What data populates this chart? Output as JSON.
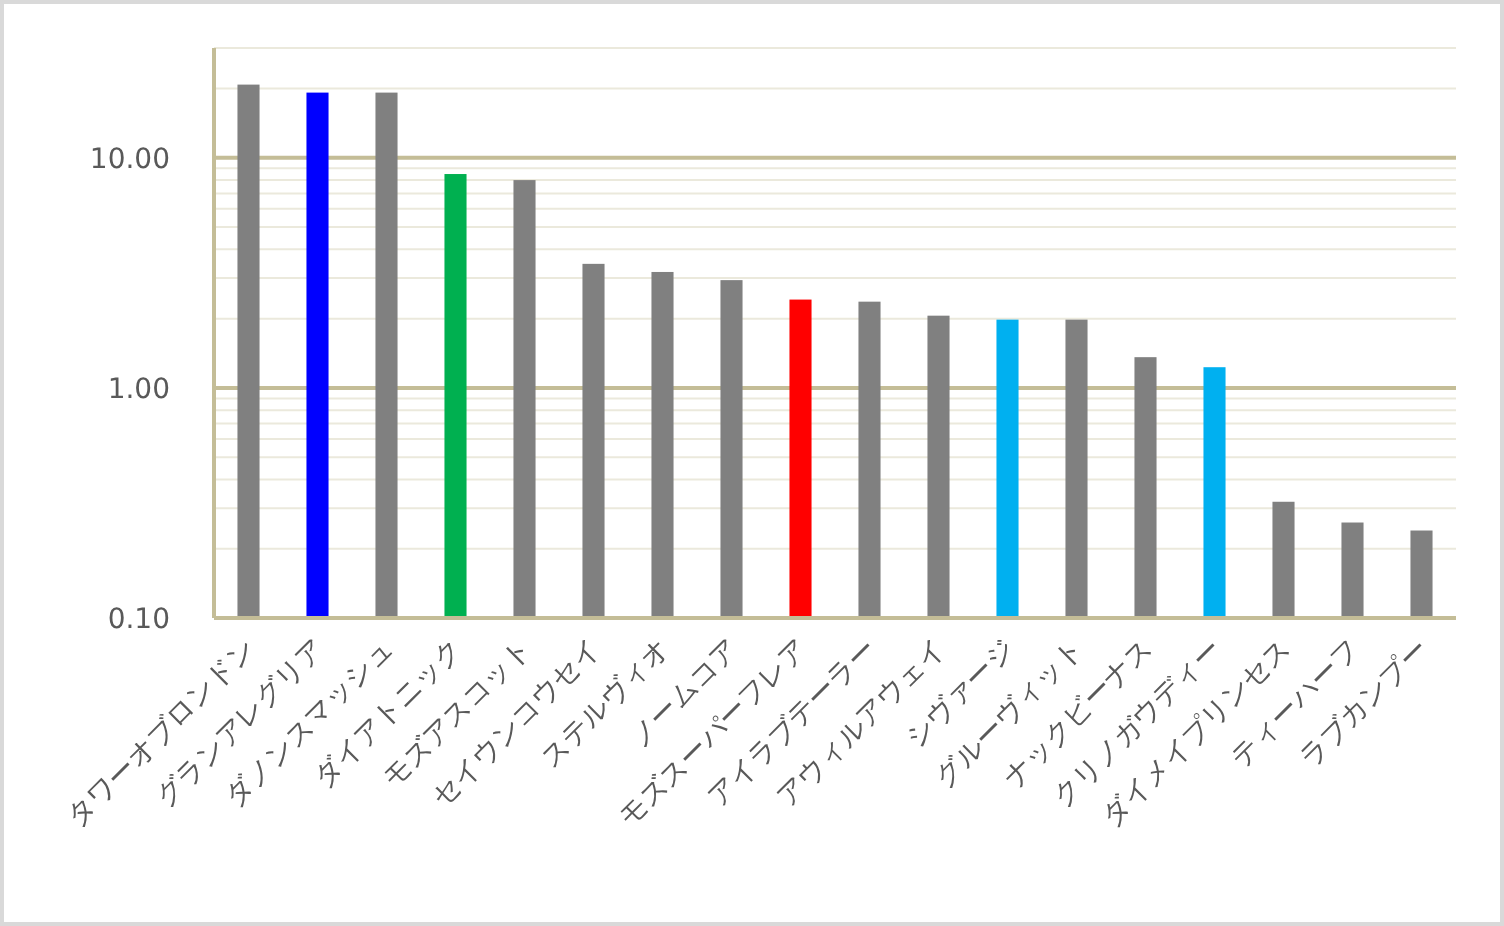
{
  "chart_data": {
    "type": "bar",
    "categories": [
      "タワーオブロンドン",
      "グランアレグリア",
      "ダノンスマッシュ",
      "ダイアトニック",
      "モズアスコット",
      "セイウンコウセイ",
      "ステルヴィオ",
      "ノームコア",
      "モズスーパーフレア",
      "アイラブテーラー",
      "アウィルアウェイ",
      "シヴァージ",
      "グルーヴィット",
      "ナックビーナス",
      "クリノガウディー",
      "ダイメイプリンセス",
      "ティーハーフ",
      "ラブカンプー"
    ],
    "values": [
      20.8,
      19.2,
      19.2,
      8.5,
      8.0,
      3.46,
      3.19,
      2.94,
      2.42,
      2.37,
      2.06,
      1.98,
      1.98,
      1.36,
      1.23,
      0.32,
      0.26,
      0.24
    ],
    "colors": [
      "#808080",
      "#0000ff",
      "#808080",
      "#00b050",
      "#808080",
      "#808080",
      "#808080",
      "#808080",
      "#ff0000",
      "#808080",
      "#808080",
      "#00b0f0",
      "#808080",
      "#808080",
      "#00b0f0",
      "#808080",
      "#808080",
      "#808080"
    ],
    "log": true,
    "ylim": [
      0.1,
      30
    ],
    "yticks": [
      {
        "value": 0.1,
        "label": "0.10"
      },
      {
        "value": 0.2,
        "label": null
      },
      {
        "value": 0.3,
        "label": null
      },
      {
        "value": 0.4,
        "label": null
      },
      {
        "value": 0.5,
        "label": null
      },
      {
        "value": 0.6,
        "label": null
      },
      {
        "value": 0.7,
        "label": null
      },
      {
        "value": 0.8,
        "label": null
      },
      {
        "value": 0.9,
        "label": null
      },
      {
        "value": 1,
        "label": "1.00"
      },
      {
        "value": 2,
        "label": null
      },
      {
        "value": 3,
        "label": null
      },
      {
        "value": 4,
        "label": null
      },
      {
        "value": 5,
        "label": null
      },
      {
        "value": 6,
        "label": null
      },
      {
        "value": 7,
        "label": null
      },
      {
        "value": 8,
        "label": null
      },
      {
        "value": 9,
        "label": null
      },
      {
        "value": 10,
        "label": "10.00"
      },
      {
        "value": 20,
        "label": null
      },
      {
        "value": 30,
        "label": null
      }
    ],
    "grid": "y"
  }
}
